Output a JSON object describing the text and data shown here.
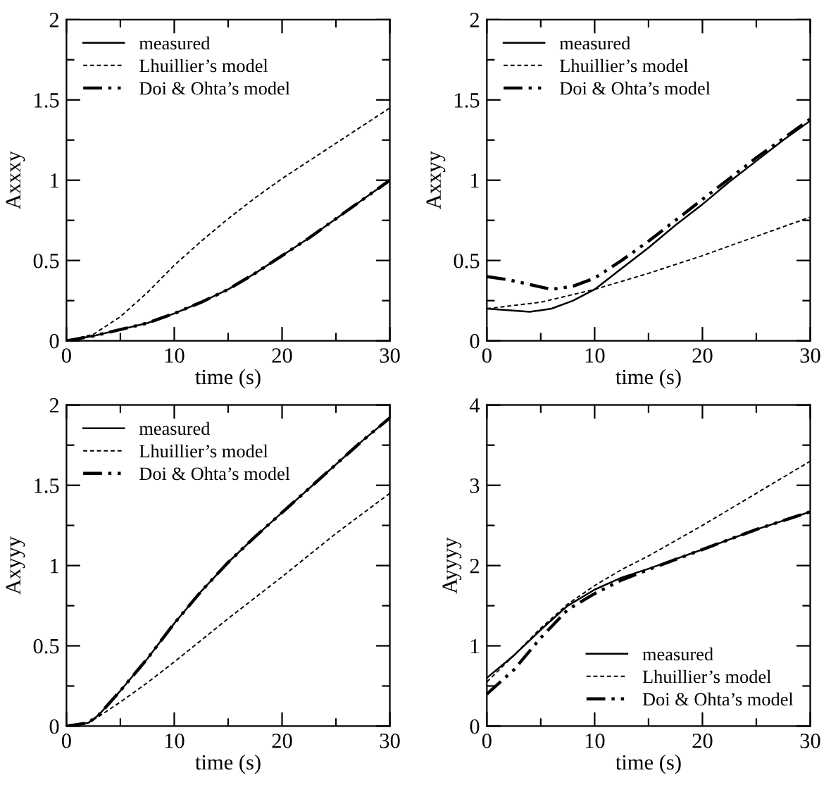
{
  "chart_data": [
    {
      "type": "line",
      "xlabel": "time (s)",
      "ylabel": "Axxxy",
      "xlim": [
        0,
        30
      ],
      "ylim": [
        0,
        2
      ],
      "legend": "top left",
      "grid": false,
      "xticks": [
        0,
        {
          "value": 5,
          "label": null
        },
        10,
        {
          "value": 15,
          "label": null
        },
        20,
        {
          "value": 25,
          "label": null
        },
        30
      ],
      "yticks": [
        0,
        {
          "value": 0.25,
          "label": null
        },
        0.5,
        {
          "value": 0.75,
          "label": null
        },
        1,
        {
          "value": 1.25,
          "label": null
        },
        1.5,
        {
          "value": 1.75,
          "label": null
        },
        2
      ],
      "series": [
        {
          "name": "measured",
          "color": "#000000",
          "line_style": "solid",
          "x": [
            0,
            2.5,
            5,
            7.5,
            10,
            12.5,
            15,
            17.5,
            20,
            22.5,
            25,
            27.5,
            30
          ],
          "values": [
            0,
            0.03,
            0.07,
            0.11,
            0.17,
            0.24,
            0.32,
            0.42,
            0.53,
            0.64,
            0.76,
            0.88,
            1.0
          ]
        },
        {
          "name": "Lhuillier’s model",
          "color": "#000000",
          "line_style": "dashed",
          "x": [
            0,
            2.5,
            5,
            7.5,
            10,
            12.5,
            15,
            17.5,
            20,
            22.5,
            25,
            27.5,
            30
          ],
          "values": [
            0,
            0.04,
            0.15,
            0.3,
            0.47,
            0.62,
            0.76,
            0.89,
            1.01,
            1.12,
            1.23,
            1.34,
            1.45
          ]
        },
        {
          "name": "Doi & Ohta’s model",
          "color": "#000000",
          "line_style": "dashdot",
          "x": [
            0,
            2.5,
            5,
            7.5,
            10,
            12.5,
            15,
            17.5,
            20,
            22.5,
            25,
            27.5,
            30
          ],
          "values": [
            0,
            0.03,
            0.07,
            0.11,
            0.17,
            0.24,
            0.32,
            0.42,
            0.53,
            0.64,
            0.76,
            0.88,
            1.0
          ]
        }
      ]
    },
    {
      "type": "line",
      "xlabel": "time (s)",
      "ylabel": "Axxyy",
      "xlim": [
        0,
        30
      ],
      "ylim": [
        0,
        2
      ],
      "legend": "top left",
      "grid": false,
      "xticks": [
        0,
        {
          "value": 5,
          "label": null
        },
        10,
        {
          "value": 15,
          "label": null
        },
        20,
        {
          "value": 25,
          "label": null
        },
        30
      ],
      "yticks": [
        0,
        {
          "value": 0.25,
          "label": null
        },
        0.5,
        {
          "value": 0.75,
          "label": null
        },
        1,
        {
          "value": 1.25,
          "label": null
        },
        1.5,
        {
          "value": 1.75,
          "label": null
        },
        2
      ],
      "series": [
        {
          "name": "measured",
          "color": "#000000",
          "line_style": "solid",
          "x": [
            0,
            2,
            4,
            6,
            8,
            10,
            12.5,
            15,
            17.5,
            20,
            22.5,
            25,
            27.5,
            30
          ],
          "values": [
            0.2,
            0.19,
            0.18,
            0.2,
            0.25,
            0.32,
            0.45,
            0.58,
            0.72,
            0.85,
            0.99,
            1.12,
            1.25,
            1.37
          ]
        },
        {
          "name": "Lhuillier’s model",
          "color": "#000000",
          "line_style": "dashed",
          "x": [
            0,
            5,
            10,
            15,
            20,
            25,
            30
          ],
          "values": [
            0.2,
            0.24,
            0.32,
            0.42,
            0.53,
            0.65,
            0.77
          ]
        },
        {
          "name": "Doi & Ohta’s model",
          "color": "#000000",
          "line_style": "dashdot",
          "x": [
            0,
            2,
            4,
            6,
            8,
            10,
            12.5,
            15,
            17.5,
            20,
            22.5,
            25,
            27.5,
            30
          ],
          "values": [
            0.4,
            0.38,
            0.35,
            0.32,
            0.34,
            0.39,
            0.5,
            0.62,
            0.75,
            0.88,
            1.01,
            1.14,
            1.26,
            1.38
          ]
        }
      ]
    },
    {
      "type": "line",
      "xlabel": "time (s)",
      "ylabel": "Axyyy",
      "xlim": [
        0,
        30
      ],
      "ylim": [
        0,
        2
      ],
      "legend": "top left",
      "grid": false,
      "xticks": [
        0,
        {
          "value": 5,
          "label": null
        },
        10,
        {
          "value": 15,
          "label": null
        },
        20,
        {
          "value": 25,
          "label": null
        },
        30
      ],
      "yticks": [
        0,
        {
          "value": 0.25,
          "label": null
        },
        0.5,
        {
          "value": 0.75,
          "label": null
        },
        1,
        {
          "value": 1.25,
          "label": null
        },
        1.5,
        {
          "value": 1.75,
          "label": null
        },
        2
      ],
      "series": [
        {
          "name": "measured",
          "color": "#000000",
          "line_style": "solid",
          "x": [
            0,
            1,
            2,
            3,
            5,
            7.5,
            10,
            12.5,
            15,
            17.5,
            20,
            22.5,
            25,
            27.5,
            30
          ],
          "values": [
            0,
            0.01,
            0.02,
            0.07,
            0.22,
            0.42,
            0.64,
            0.84,
            1.02,
            1.18,
            1.33,
            1.48,
            1.63,
            1.78,
            1.92
          ]
        },
        {
          "name": "Lhuillier’s model",
          "color": "#000000",
          "line_style": "dashed",
          "x": [
            0,
            1,
            2,
            3,
            5,
            7.5,
            10,
            15,
            20,
            25,
            30
          ],
          "values": [
            0,
            0.01,
            0.02,
            0.06,
            0.15,
            0.27,
            0.4,
            0.67,
            0.93,
            1.2,
            1.45
          ]
        },
        {
          "name": "Doi & Ohta’s model",
          "color": "#000000",
          "line_style": "dashdot",
          "x": [
            0,
            1,
            2,
            3,
            5,
            7.5,
            10,
            12.5,
            15,
            17.5,
            20,
            22.5,
            25,
            27.5,
            30
          ],
          "values": [
            0,
            0.01,
            0.02,
            0.07,
            0.22,
            0.42,
            0.64,
            0.84,
            1.02,
            1.18,
            1.33,
            1.48,
            1.63,
            1.78,
            1.92
          ]
        }
      ]
    },
    {
      "type": "line",
      "xlabel": "time (s)",
      "ylabel": "Ayyyy",
      "xlim": [
        0,
        30
      ],
      "ylim": [
        0,
        4
      ],
      "legend": "bottom right",
      "grid": false,
      "xticks": [
        0,
        {
          "value": 5,
          "label": null
        },
        10,
        {
          "value": 15,
          "label": null
        },
        20,
        {
          "value": 25,
          "label": null
        },
        30
      ],
      "yticks": [
        0,
        {
          "value": 0.5,
          "label": null
        },
        1,
        {
          "value": 1.5,
          "label": null
        },
        2,
        {
          "value": 2.5,
          "label": null
        },
        3,
        {
          "value": 3.5,
          "label": null
        },
        4
      ],
      "series": [
        {
          "name": "measured",
          "color": "#000000",
          "line_style": "solid",
          "x": [
            0,
            2.5,
            5,
            7.5,
            10,
            12.5,
            15,
            20,
            25,
            30
          ],
          "values": [
            0.6,
            0.88,
            1.2,
            1.5,
            1.7,
            1.85,
            1.96,
            2.2,
            2.45,
            2.67
          ]
        },
        {
          "name": "Lhuillier’s model",
          "color": "#000000",
          "line_style": "dashed",
          "x": [
            0,
            2.5,
            5,
            7.5,
            10,
            12.5,
            15,
            20,
            25,
            30
          ],
          "values": [
            0.55,
            0.88,
            1.22,
            1.52,
            1.75,
            1.95,
            2.12,
            2.5,
            2.9,
            3.3
          ]
        },
        {
          "name": "Doi & Ohta’s model",
          "color": "#000000",
          "line_style": "dashdot",
          "x": [
            0,
            2.5,
            5,
            7.5,
            10,
            12.5,
            15,
            20,
            25,
            30
          ],
          "values": [
            0.4,
            0.7,
            1.1,
            1.45,
            1.65,
            1.82,
            1.95,
            2.2,
            2.45,
            2.67
          ]
        }
      ]
    }
  ]
}
